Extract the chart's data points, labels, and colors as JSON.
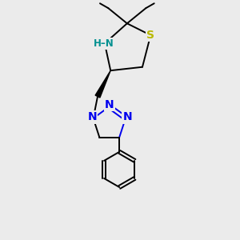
{
  "background_color": "#ebebeb",
  "bond_color": "#000000",
  "S_color": "#b8b800",
  "N_color": "#0000ee",
  "NH_color": "#009090",
  "figsize": [
    3.0,
    3.0
  ],
  "dpi": 100,
  "xlim": [
    0,
    10
  ],
  "ylim": [
    0,
    10
  ]
}
